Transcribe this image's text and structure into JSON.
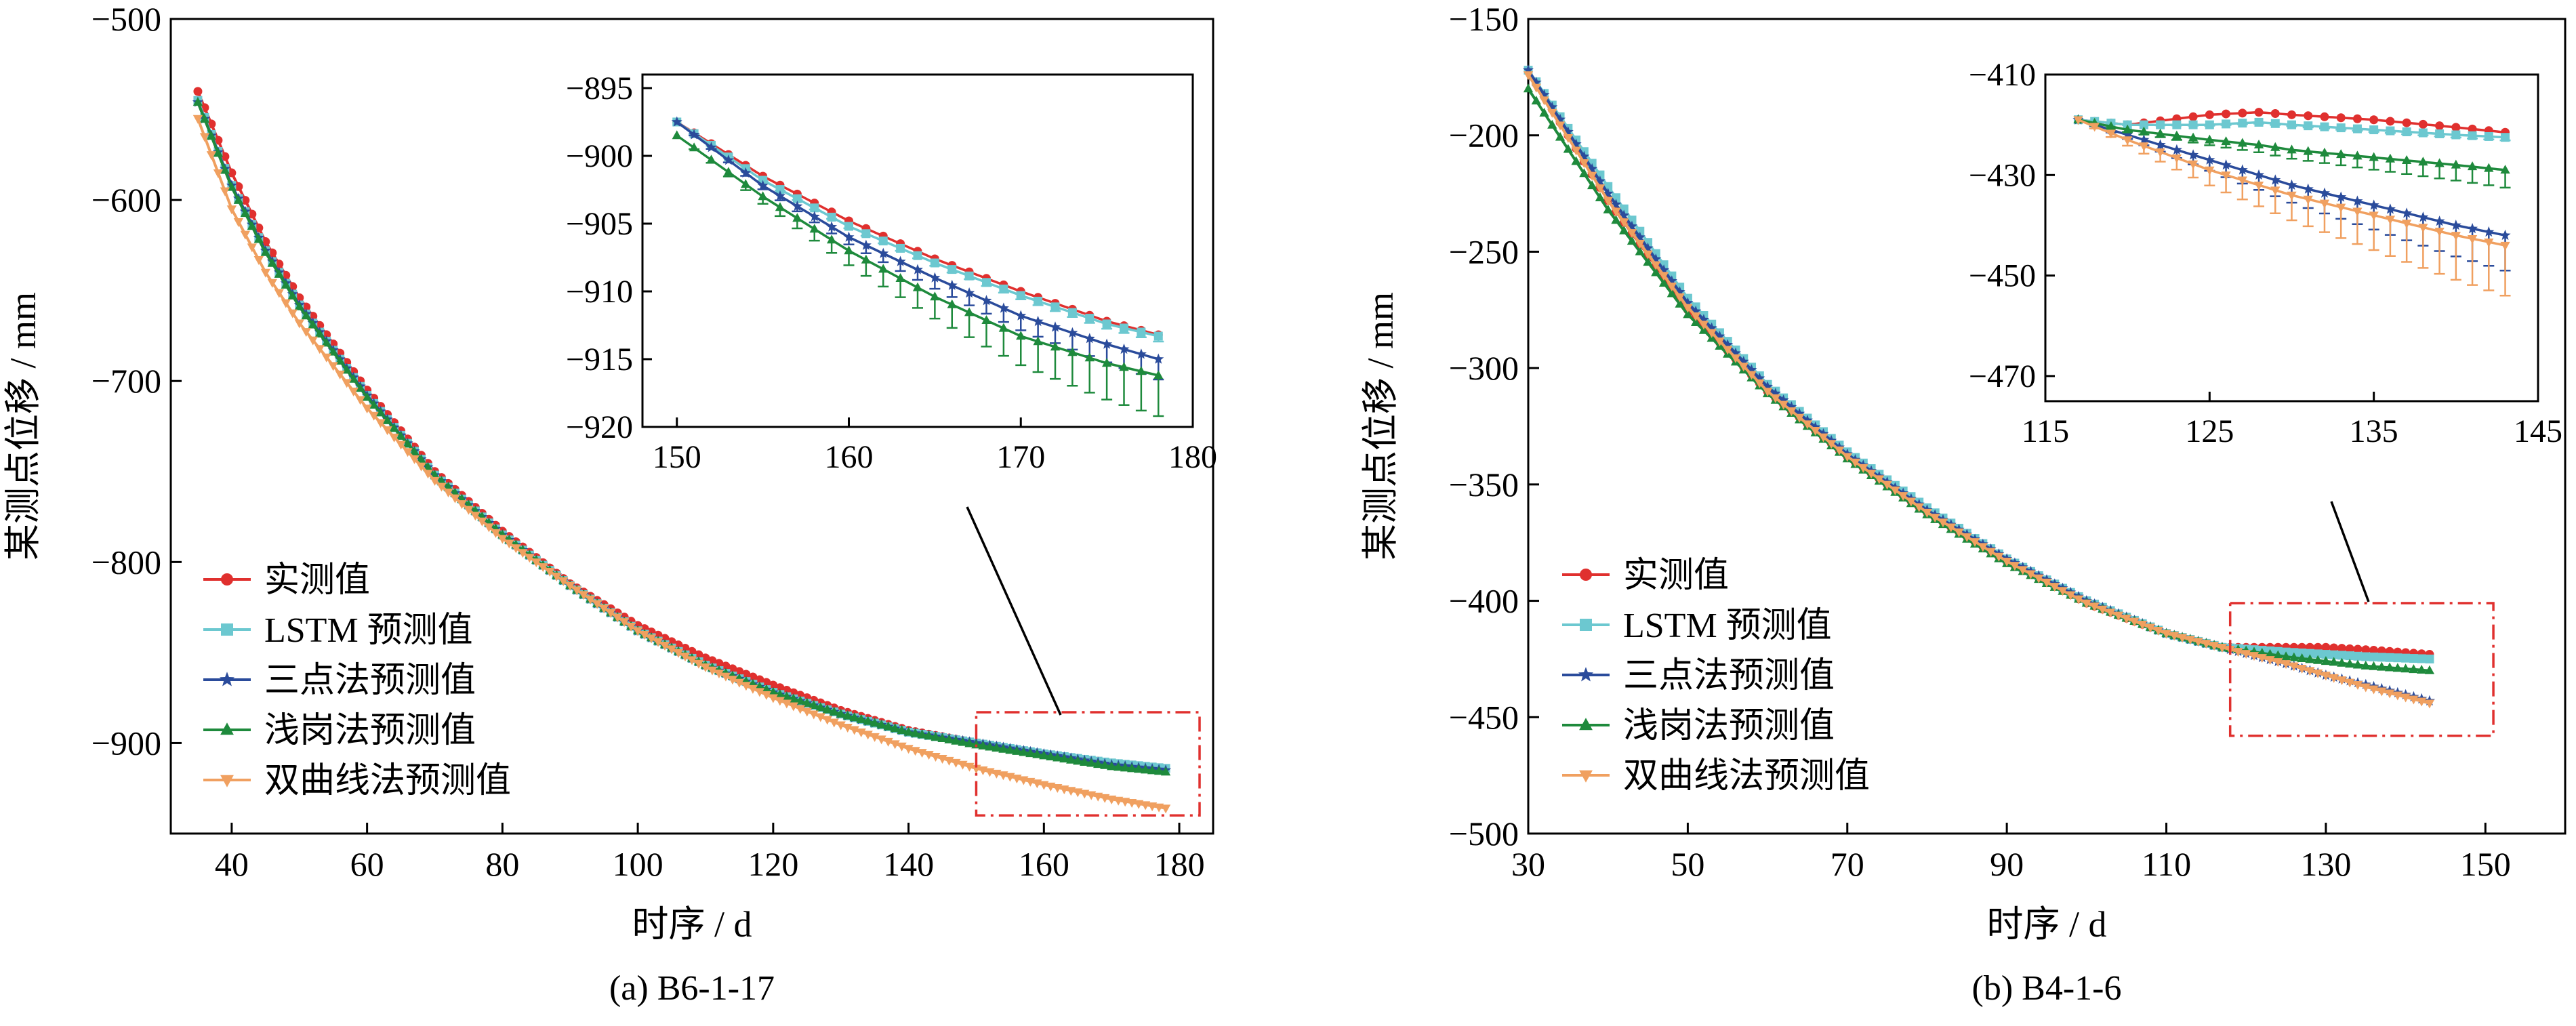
{
  "chart_data": [
    {
      "type": "line",
      "caption": "(a)  B6-1-17",
      "xlabel": "时序 / d",
      "ylabel": "某测点位移 / mm",
      "xlim": [
        31,
        185
      ],
      "ylim": [
        -950,
        -500
      ],
      "xticks": [
        40,
        60,
        80,
        100,
        120,
        140,
        160,
        180
      ],
      "yticks": [
        -500,
        -600,
        -700,
        -800,
        -900
      ],
      "ytick_labels": [
        "−500",
        "−600",
        "−700",
        "−800",
        "−900"
      ],
      "legend_position": "lower-left",
      "x": [
        35,
        40,
        45,
        50,
        60,
        70,
        80,
        90,
        100,
        110,
        120,
        130,
        140,
        150,
        160,
        170,
        178
      ],
      "series": [
        {
          "name": "实测值",
          "color": "#e0302e",
          "marker": "circle",
          "values": [
            -540,
            -585,
            -623,
            -654,
            -705,
            -750,
            -783,
            -812,
            -835,
            -853,
            -868,
            -882,
            -893,
            -900,
            -906,
            -911,
            -914
          ]
        },
        {
          "name": "LSTM 预测值",
          "color": "#6cc8d0",
          "marker": "square",
          "values": [
            -545,
            -592,
            -628,
            -658,
            -708,
            -752,
            -785,
            -813,
            -838,
            -857,
            -872,
            -884,
            -894,
            -900,
            -906,
            -911,
            -914
          ]
        },
        {
          "name": "三点法预测值",
          "color": "#2a4b9b",
          "marker": "star",
          "values": [
            -546,
            -592,
            -628,
            -658,
            -708,
            -752,
            -785,
            -813,
            -838,
            -857,
            -872,
            -884,
            -894,
            -900,
            -906,
            -912,
            -915
          ]
        },
        {
          "name": "浅岗法预测值",
          "color": "#1e8a3c",
          "marker": "triangle-up",
          "values": [
            -546,
            -593,
            -629,
            -659,
            -709,
            -752,
            -785,
            -813,
            -838,
            -857,
            -872,
            -884,
            -894,
            -901,
            -907,
            -913,
            -916
          ]
        },
        {
          "name": "双曲线法预测值",
          "color": "#f0a060",
          "marker": "triangle-down",
          "values": [
            -555,
            -605,
            -640,
            -668,
            -715,
            -755,
            -787,
            -813,
            -838,
            -858,
            -875,
            -890,
            -903,
            -914,
            -923,
            -931,
            -936
          ]
        }
      ],
      "highlight_box": {
        "x": [
          150,
          183
        ],
        "y": [
          -883,
          -940
        ]
      },
      "inset": {
        "xlim": [
          148,
          180
        ],
        "ylim": [
          -920,
          -894
        ],
        "xticks": [
          150,
          160,
          170,
          180
        ],
        "yticks": [
          -895,
          -900,
          -905,
          -910,
          -915,
          -920
        ],
        "ytick_labels": [
          "−895",
          "−900",
          "−905",
          "−910",
          "−915",
          "−920"
        ],
        "x": [
          150,
          155,
          160,
          165,
          170,
          175,
          178
        ],
        "series": [
          {
            "name": "实测值",
            "values": [
              -897.5,
              -901.5,
              -904.8,
              -907.6,
              -910,
              -912.2,
              -913.2
            ],
            "err": 0
          },
          {
            "name": "LSTM 预测值",
            "values": [
              -897.5,
              -901.8,
              -905.2,
              -907.9,
              -910.3,
              -912.4,
              -913.3
            ],
            "err": 0.4
          },
          {
            "name": "三点法预测值",
            "values": [
              -897.5,
              -902.2,
              -906,
              -909,
              -911.8,
              -913.9,
              -915
            ],
            "err": 1.5
          },
          {
            "name": "浅岗法预测值",
            "values": [
              -898.5,
              -903,
              -907,
              -910.4,
              -913.3,
              -915.3,
              -916.2
            ],
            "err": 3
          }
        ]
      }
    },
    {
      "type": "line",
      "caption": "(b)  B4-1-6",
      "xlabel": "时序 / d",
      "ylabel": "某测点位移 / mm",
      "xlim": [
        30,
        160
      ],
      "ylim": [
        -500,
        -150
      ],
      "xticks": [
        30,
        50,
        70,
        90,
        110,
        130,
        150
      ],
      "yticks": [
        -150,
        -200,
        -250,
        -300,
        -350,
        -400,
        -450,
        -500
      ],
      "ytick_labels": [
        "−150",
        "−200",
        "−250",
        "−300",
        "−350",
        "−400",
        "−450",
        "−500"
      ],
      "legend_position": "lower-left",
      "x": [
        30,
        40,
        50,
        60,
        70,
        80,
        90,
        100,
        110,
        117,
        125,
        130,
        135,
        143
      ],
      "series": [
        {
          "name": "实测值",
          "color": "#e0302e",
          "marker": "circle",
          "values": [
            -172,
            -228,
            -275,
            -310,
            -338,
            -362,
            -383,
            -401,
            -414,
            -420,
            -420,
            -420,
            -421,
            -423
          ]
        },
        {
          "name": "LSTM 预测值",
          "color": "#6cc8d0",
          "marker": "square",
          "values": [
            -172,
            -222,
            -270,
            -307,
            -336,
            -360,
            -382,
            -400,
            -414,
            -420,
            -422,
            -423,
            -424,
            -425
          ]
        },
        {
          "name": "三点法预测值",
          "color": "#2a4b9b",
          "marker": "star",
          "values": [
            -172,
            -225,
            -272,
            -308,
            -337,
            -361,
            -382,
            -400,
            -414,
            -420,
            -427,
            -432,
            -436,
            -443
          ]
        },
        {
          "name": "浅岗法预测值",
          "color": "#1e8a3c",
          "marker": "triangle-up",
          "values": [
            -180,
            -232,
            -277,
            -311,
            -339,
            -363,
            -384,
            -401,
            -414,
            -420,
            -424,
            -426,
            -428,
            -430
          ]
        },
        {
          "name": "双曲线法预测值",
          "color": "#f0a060",
          "marker": "triangle-down",
          "values": [
            -174,
            -228,
            -274,
            -310,
            -338,
            -362,
            -383,
            -401,
            -414,
            -420,
            -427,
            -432,
            -437,
            -444
          ]
        }
      ],
      "highlight_box": {
        "x": [
          118,
          151
        ],
        "y": [
          -401,
          -458
        ]
      },
      "inset": {
        "xlim": [
          115,
          145
        ],
        "ylim": [
          -475,
          -410
        ],
        "xticks": [
          115,
          125,
          135,
          145
        ],
        "yticks": [
          -410,
          -430,
          -450,
          -470
        ],
        "ytick_labels": [
          "−410",
          "−430",
          "−450",
          "−470"
        ],
        "x": [
          117,
          120,
          125,
          128,
          130,
          135,
          140,
          143
        ],
        "series": [
          {
            "name": "实测值",
            "values": [
              -419,
              -420,
              -418,
              -417.5,
              -418,
              -419,
              -420.5,
              -421.5
            ],
            "err": 0
          },
          {
            "name": "LSTM 预测值",
            "values": [
              -419,
              -420,
              -420,
              -419.5,
              -420,
              -421,
              -422,
              -422.5
            ],
            "err": 0.6
          },
          {
            "name": "三点法预测值",
            "values": [
              -419,
              -422,
              -427,
              -430,
              -432,
              -436,
              -440,
              -442
            ],
            "err": 7
          },
          {
            "name": "浅岗法预测值",
            "values": [
              -419,
              -421,
              -423,
              -424,
              -425,
              -426.5,
              -428,
              -429
            ],
            "err": 3.5
          },
          {
            "name": "双曲线法预测值",
            "values": [
              -419,
              -423,
              -429,
              -432,
              -434,
              -438,
              -442,
              -444
            ],
            "err": 10
          }
        ]
      }
    }
  ]
}
